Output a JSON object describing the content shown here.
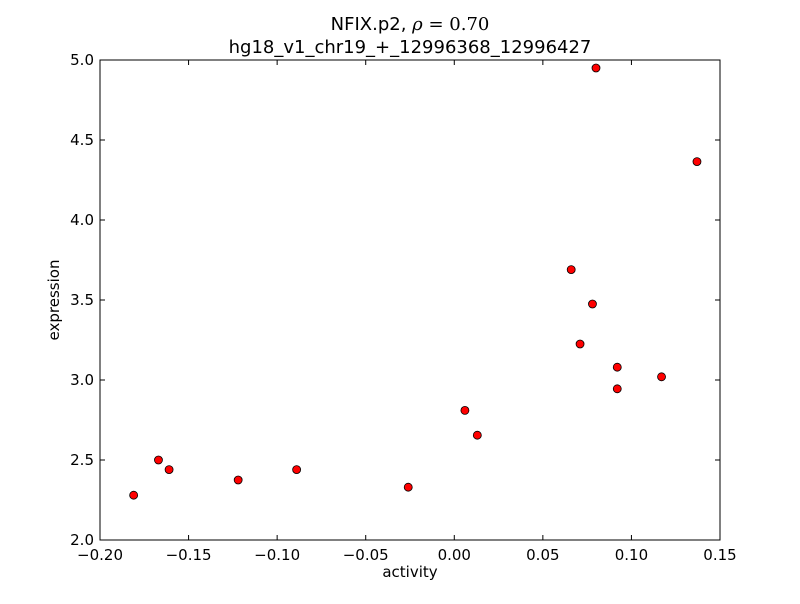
{
  "chart_data": {
    "type": "scatter",
    "title_line1_text": "NFIX.p2, ",
    "title_line1_rho": "ρ",
    "title_line1_value": " = 0.70",
    "title_line2": "hg18_v1_chr19_+_12996368_12996427",
    "xlabel": "activity",
    "ylabel": "expression",
    "xlim": [
      -0.2,
      0.15
    ],
    "ylim": [
      2.0,
      5.0
    ],
    "xticks": [
      -0.2,
      -0.15,
      -0.1,
      -0.05,
      0.0,
      0.05,
      0.1,
      0.15
    ],
    "xtick_labels": [
      "−0.20",
      "−0.15",
      "−0.10",
      "−0.05",
      "0.00",
      "0.05",
      "0.10",
      "0.15"
    ],
    "yticks": [
      2.0,
      2.5,
      3.0,
      3.5,
      4.0,
      4.5,
      5.0
    ],
    "ytick_labels": [
      "2.0",
      "2.5",
      "3.0",
      "3.5",
      "4.0",
      "4.5",
      "5.0"
    ],
    "grid": false,
    "marker_color": "#ff0000",
    "marker_edge_color": "#000000",
    "points": [
      {
        "x": -0.181,
        "y": 2.28
      },
      {
        "x": -0.167,
        "y": 2.5
      },
      {
        "x": -0.161,
        "y": 2.44
      },
      {
        "x": -0.122,
        "y": 2.375
      },
      {
        "x": -0.089,
        "y": 2.44
      },
      {
        "x": -0.026,
        "y": 2.33
      },
      {
        "x": 0.006,
        "y": 2.81
      },
      {
        "x": 0.013,
        "y": 2.655
      },
      {
        "x": 0.066,
        "y": 3.69
      },
      {
        "x": 0.071,
        "y": 3.225
      },
      {
        "x": 0.078,
        "y": 3.475
      },
      {
        "x": 0.08,
        "y": 4.95
      },
      {
        "x": 0.092,
        "y": 3.08
      },
      {
        "x": 0.092,
        "y": 2.945
      },
      {
        "x": 0.117,
        "y": 3.02
      },
      {
        "x": 0.137,
        "y": 4.365
      }
    ]
  }
}
